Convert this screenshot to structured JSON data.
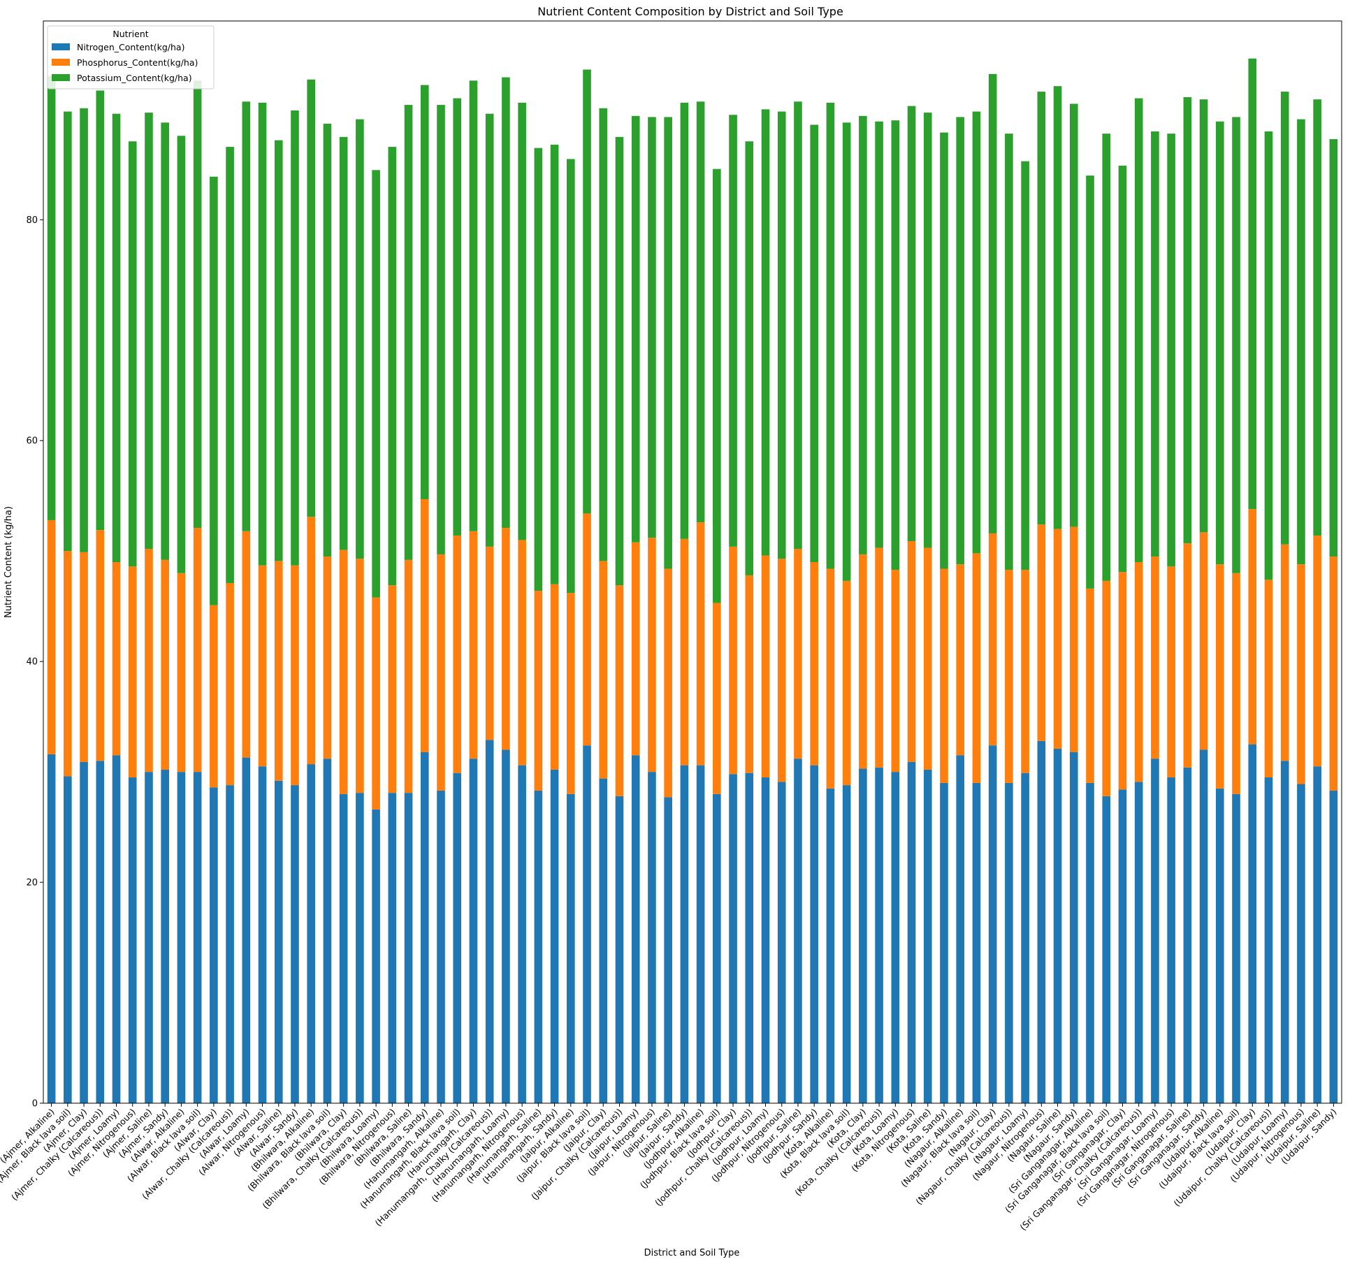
{
  "chart_data": {
    "type": "bar",
    "stacked": true,
    "title": "Nutrient Content Composition by District and Soil Type",
    "xlabel": "District and Soil Type",
    "ylabel": "Nutrient Content (kg/ha)",
    "ylim": [
      0,
      98
    ],
    "yticks": [
      0,
      20,
      40,
      60,
      80
    ],
    "grid": false,
    "legend": {
      "title": "Nutrient",
      "placement": "top-left"
    },
    "colors": [
      "#1f77b4",
      "#ff7f0e",
      "#2ca02c"
    ],
    "categories": [
      "(Ajmer, Alkaline)",
      "(Ajmer, Black lava soil)",
      "(Ajmer, Clay)",
      "(Ajmer, Chalky (Calcareous))",
      "(Ajmer, Loamy)",
      "(Ajmer, Nitrogenous)",
      "(Ajmer, Saline)",
      "(Ajmer, Sandy)",
      "(Alwar, Alkaline)",
      "(Alwar, Black lava soil)",
      "(Alwar, Clay)",
      "(Alwar, Chalky (Calcareous))",
      "(Alwar, Loamy)",
      "(Alwar, Nitrogenous)",
      "(Alwar, Saline)",
      "(Alwar, Sandy)",
      "(Bhilwara, Alkaline)",
      "(Bhilwara, Black lava soil)",
      "(Bhilwara, Clay)",
      "(Bhilwara, Chalky (Calcareous))",
      "(Bhilwara, Loamy)",
      "(Bhilwara, Nitrogenous)",
      "(Bhilwara, Saline)",
      "(Bhilwara, Sandy)",
      "(Hanumangarh, Alkaline)",
      "(Hanumangarh, Black lava soil)",
      "(Hanumangarh, Clay)",
      "(Hanumangarh, Chalky (Calcareous))",
      "(Hanumangarh, Loamy)",
      "(Hanumangarh, Nitrogenous)",
      "(Hanumangarh, Saline)",
      "(Hanumangarh, Sandy)",
      "(Jaipur, Alkaline)",
      "(Jaipur, Black lava soil)",
      "(Jaipur, Clay)",
      "(Jaipur, Chalky (Calcareous))",
      "(Jaipur, Loamy)",
      "(Jaipur, Nitrogenous)",
      "(Jaipur, Saline)",
      "(Jaipur, Sandy)",
      "(Jodhpur, Alkaline)",
      "(Jodhpur, Black lava soil)",
      "(Jodhpur, Clay)",
      "(Jodhpur, Chalky (Calcareous))",
      "(Jodhpur, Loamy)",
      "(Jodhpur, Nitrogenous)",
      "(Jodhpur, Saline)",
      "(Jodhpur, Sandy)",
      "(Kota, Alkaline)",
      "(Kota, Black lava soil)",
      "(Kota, Clay)",
      "(Kota, Chalky (Calcareous))",
      "(Kota, Loamy)",
      "(Kota, Nitrogenous)",
      "(Kota, Saline)",
      "(Kota, Sandy)",
      "(Nagaur, Alkaline)",
      "(Nagaur, Black lava soil)",
      "(Nagaur, Clay)",
      "(Nagaur, Chalky (Calcareous))",
      "(Nagaur, Loamy)",
      "(Nagaur, Nitrogenous)",
      "(Nagaur, Saline)",
      "(Nagaur, Sandy)",
      "(Sri Ganganagar, Alkaline)",
      "(Sri Ganganagar, Black lava soil)",
      "(Sri Ganganagar, Clay)",
      "(Sri Ganganagar, Chalky (Calcareous))",
      "(Sri Ganganagar, Loamy)",
      "(Sri Ganganagar, Nitrogenous)",
      "(Sri Ganganagar, Saline)",
      "(Sri Ganganagar, Sandy)",
      "(Udaipur, Alkaline)",
      "(Udaipur, Black lava soil)",
      "(Udaipur, Clay)",
      "(Udaipur, Chalky (Calcareous))",
      "(Udaipur, Loamy)",
      "(Udaipur, Nitrogenous)",
      "(Udaipur, Saline)",
      "(Udaipur, Sandy)"
    ],
    "series": [
      {
        "name": "Nitrogen_Content(kg/ha)",
        "values": [
          31.6,
          29.6,
          30.9,
          31.0,
          31.5,
          29.5,
          30.0,
          30.2,
          30.0,
          30.0,
          28.6,
          28.8,
          31.3,
          30.5,
          29.2,
          28.8,
          30.7,
          31.2,
          28.0,
          28.1,
          26.6,
          28.1,
          28.1,
          31.8,
          28.3,
          29.9,
          31.2,
          32.9,
          32.0,
          30.6,
          28.3,
          30.2,
          28.0,
          32.4,
          29.4,
          27.8,
          31.5,
          30.0,
          27.7,
          30.6,
          30.6,
          28.0,
          29.8,
          29.9,
          29.5,
          29.1,
          31.2,
          30.6,
          28.5,
          28.8,
          30.3,
          30.4,
          30.0,
          30.9,
          30.2,
          29.0,
          31.5,
          29.0,
          32.4,
          29.0,
          29.9,
          32.8,
          32.1,
          31.8,
          29.0,
          27.8,
          28.4,
          29.1,
          31.2,
          29.5,
          30.4,
          32.0,
          28.5,
          28.0,
          32.5,
          29.5,
          31.0,
          28.9,
          30.5,
          28.3
        ],
        "totals_note": ""
      },
      {
        "name": "Phosphorus_Content(kg/ha)",
        "values": [
          21.2,
          20.4,
          19.0,
          20.9,
          17.5,
          19.1,
          20.2,
          19.0,
          18.0,
          22.1,
          16.5,
          18.3,
          20.5,
          18.2,
          19.9,
          19.9,
          22.4,
          18.3,
          22.1,
          21.2,
          19.2,
          18.8,
          21.1,
          22.9,
          21.4,
          21.5,
          20.6,
          17.5,
          20.1,
          20.4,
          18.1,
          16.8,
          18.2,
          21.0,
          19.7,
          19.1,
          19.3,
          21.2,
          20.7,
          20.5,
          22.0,
          17.3,
          20.6,
          17.9,
          20.1,
          20.2,
          19.0,
          18.4,
          19.9,
          18.5,
          19.4,
          19.9,
          18.3,
          20.0,
          20.1,
          19.4,
          17.3,
          20.8,
          19.2,
          19.3,
          18.4,
          19.6,
          19.9,
          20.4,
          17.6,
          19.5,
          19.7,
          19.9,
          18.3,
          19.1,
          20.3,
          19.7,
          20.3,
          20.0,
          21.3,
          17.9,
          19.6,
          19.9,
          20.9,
          21.2
        ]
      },
      {
        "name": "Potassium_Content(kg/ha)",
        "values": [
          40.2,
          39.8,
          40.2,
          39.8,
          40.6,
          38.5,
          39.5,
          39.6,
          39.6,
          40.5,
          38.8,
          39.5,
          38.9,
          41.9,
          38.1,
          41.2,
          39.6,
          39.2,
          37.4,
          39.8,
          38.7,
          39.7,
          41.2,
          37.5,
          40.7,
          39.6,
          40.8,
          39.2,
          40.8,
          39.6,
          40.1,
          39.8,
          39.3,
          40.2,
          41.0,
          40.6,
          38.6,
          38.1,
          40.9,
          39.5,
          38.1,
          39.3,
          39.1,
          39.3,
          40.4,
          40.5,
          40.5,
          39.6,
          42.2,
          41.5,
          39.7,
          38.6,
          40.7,
          39.4,
          39.4,
          39.5,
          40.5,
          40.0,
          41.6,
          39.5,
          37.0,
          39.2,
          40.1,
          38.3,
          37.4,
          40.5,
          36.8,
          42.0,
          38.5,
          39.2,
          40.4,
          39.2,
          40.1,
          41.3,
          40.8,
          40.6,
          41.0,
          40.3,
          39.5,
          37.8
        ]
      }
    ]
  }
}
